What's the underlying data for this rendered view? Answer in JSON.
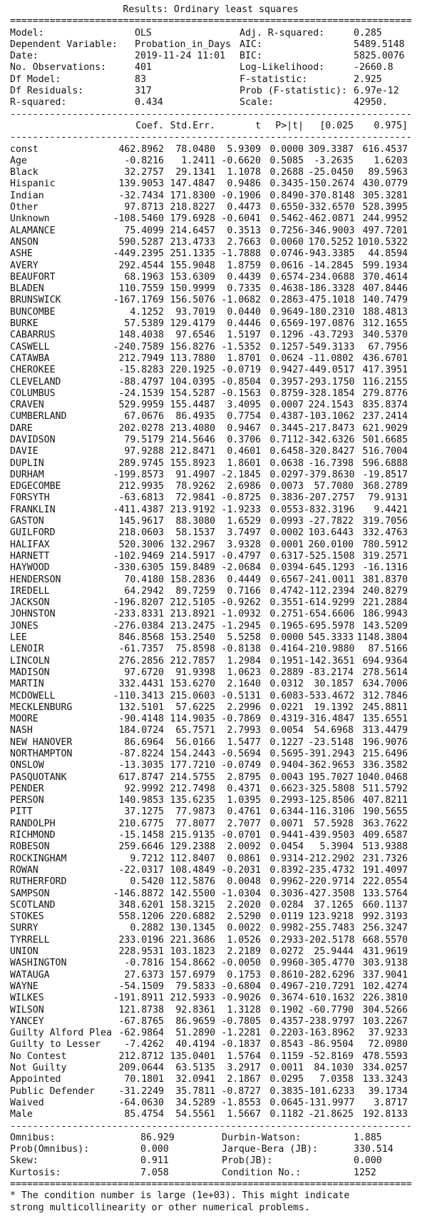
{
  "title": "Results: Ordinary least squares",
  "rule_double": "==================================================================================================",
  "rule_single": "--------------------------------------------------------------------------------------------------",
  "summary": [
    {
      "l1": "Model:",
      "v1": "OLS",
      "l2": "Adj. R-squared:",
      "v2": "0.285"
    },
    {
      "l1": "Dependent Variable:",
      "v1": "Probation_in_Days",
      "l2": "AIC:",
      "v2": "5489.5148"
    },
    {
      "l1": "Date:",
      "v1": "2019-11-24 11:01",
      "l2": "BIC:",
      "v2": "5825.0076"
    },
    {
      "l1": "No. Observations:",
      "v1": "401",
      "l2": "Log-Likelihood:",
      "v2": "-2660.8"
    },
    {
      "l1": "Df Model:",
      "v1": "83",
      "l2": "F-statistic:",
      "v2": "2.925"
    },
    {
      "l1": "Df Residuals:",
      "v1": "317",
      "l2": "Prob (F-statistic):",
      "v2": "6.97e-12"
    },
    {
      "l1": "R-squared:",
      "v1": "0.434",
      "l2": "Scale:",
      "v2": "42950."
    }
  ],
  "coef_headers": [
    "Coef.",
    "Std.Err.",
    "t",
    "P>|t|",
    "[0.025",
    "0.975]"
  ],
  "coef_rows": [
    [
      "const",
      "462.8962",
      "78.0480",
      "5.9309",
      "0.0000",
      "309.3387",
      "616.4537"
    ],
    [
      "Age",
      "-0.8216",
      "1.2411",
      "-0.6620",
      "0.5085",
      "-3.2635",
      "1.6203"
    ],
    [
      "Black",
      "32.2757",
      "29.1341",
      "1.1078",
      "0.2688",
      "-25.0450",
      "89.5963"
    ],
    [
      "Hispanic",
      "139.9053",
      "147.4847",
      "0.9486",
      "0.3435",
      "-150.2674",
      "430.0779"
    ],
    [
      "Indian",
      "-32.7434",
      "171.8300",
      "-0.1906",
      "0.8490",
      "-370.8148",
      "305.3281"
    ],
    [
      "Other",
      "97.8713",
      "218.8227",
      "0.4473",
      "0.6550",
      "-332.6570",
      "528.3995"
    ],
    [
      "Unknown",
      "-108.5460",
      "179.6928",
      "-0.6041",
      "0.5462",
      "-462.0871",
      "244.9952"
    ],
    [
      "ALAMANCE",
      "75.4099",
      "214.6457",
      "0.3513",
      "0.7256",
      "-346.9003",
      "497.7201"
    ],
    [
      "ANSON",
      "590.5287",
      "213.4733",
      "2.7663",
      "0.0060",
      "170.5252",
      "1010.5322"
    ],
    [
      "ASHE",
      "-449.2395",
      "251.1335",
      "-1.7888",
      "0.0746",
      "-943.3385",
      "44.8594"
    ],
    [
      "AVERY",
      "292.4544",
      "155.9048",
      "1.8759",
      "0.0616",
      "-14.2845",
      "599.1934"
    ],
    [
      "BEAUFORT",
      "68.1963",
      "153.6309",
      "0.4439",
      "0.6574",
      "-234.0688",
      "370.4614"
    ],
    [
      "BLADEN",
      "110.7559",
      "150.9999",
      "0.7335",
      "0.4638",
      "-186.3328",
      "407.8446"
    ],
    [
      "BRUNSWICK",
      "-167.1769",
      "156.5076",
      "-1.0682",
      "0.2863",
      "-475.1018",
      "140.7479"
    ],
    [
      "BUNCOMBE",
      "4.1252",
      "93.7019",
      "0.0440",
      "0.9649",
      "-180.2310",
      "188.4813"
    ],
    [
      "BURKE",
      "57.5389",
      "129.4179",
      "0.4446",
      "0.6569",
      "-197.0876",
      "312.1655"
    ],
    [
      "CABARRUS",
      "148.4038",
      "97.6546",
      "1.5197",
      "0.1296",
      "-43.7293",
      "340.5370"
    ],
    [
      "CASWELL",
      "-240.7589",
      "156.8276",
      "-1.5352",
      "0.1257",
      "-549.3133",
      "67.7956"
    ],
    [
      "CATAWBA",
      "212.7949",
      "113.7880",
      "1.8701",
      "0.0624",
      "-11.0802",
      "436.6701"
    ],
    [
      "CHEROKEE",
      "-15.8283",
      "220.1925",
      "-0.0719",
      "0.9427",
      "-449.0517",
      "417.3951"
    ],
    [
      "CLEVELAND",
      "-88.4797",
      "104.0395",
      "-0.8504",
      "0.3957",
      "-293.1750",
      "116.2155"
    ],
    [
      "COLUMBUS",
      "-24.1539",
      "154.5287",
      "-0.1563",
      "0.8759",
      "-328.1854",
      "279.8776"
    ],
    [
      "CRAVEN",
      "529.9959",
      "155.4487",
      "3.4095",
      "0.0007",
      "224.1543",
      "835.8374"
    ],
    [
      "CUMBERLAND",
      "67.0676",
      "86.4935",
      "0.7754",
      "0.4387",
      "-103.1062",
      "237.2414"
    ],
    [
      "DARE",
      "202.0278",
      "213.4080",
      "0.9467",
      "0.3445",
      "-217.8473",
      "621.9029"
    ],
    [
      "DAVIDSON",
      "79.5179",
      "214.5646",
      "0.3706",
      "0.7112",
      "-342.6326",
      "501.6685"
    ],
    [
      "DAVIE",
      "97.9288",
      "212.8471",
      "0.4601",
      "0.6458",
      "-320.8427",
      "516.7004"
    ],
    [
      "DUPLIN",
      "289.9745",
      "155.8923",
      "1.8601",
      "0.0638",
      "-16.7398",
      "596.6888"
    ],
    [
      "DURHAM",
      "-199.8573",
      "91.4907",
      "-2.1845",
      "0.0297",
      "-379.8630",
      "-19.8517"
    ],
    [
      "EDGECOMBE",
      "212.9935",
      "78.9262",
      "2.6986",
      "0.0073",
      "57.7080",
      "368.2789"
    ],
    [
      "FORSYTH",
      "-63.6813",
      "72.9841",
      "-0.8725",
      "0.3836",
      "-207.2757",
      "79.9131"
    ],
    [
      "FRANKLIN",
      "-411.4387",
      "213.9192",
      "-1.9233",
      "0.0553",
      "-832.3196",
      "9.4421"
    ],
    [
      "GASTON",
      "145.9617",
      "88.3080",
      "1.6529",
      "0.0993",
      "-27.7822",
      "319.7056"
    ],
    [
      "GUILFORD",
      "218.0603",
      "58.1537",
      "3.7497",
      "0.0002",
      "103.6443",
      "332.4763"
    ],
    [
      "HALIFAX",
      "520.3006",
      "132.2967",
      "3.9328",
      "0.0001",
      "260.0100",
      "780.5912"
    ],
    [
      "HARNETT",
      "-102.9469",
      "214.5917",
      "-0.4797",
      "0.6317",
      "-525.1508",
      "319.2571"
    ],
    [
      "HAYWOOD",
      "-330.6305",
      "159.8489",
      "-2.0684",
      "0.0394",
      "-645.1293",
      "-16.1316"
    ],
    [
      "HENDERSON",
      "70.4180",
      "158.2836",
      "0.4449",
      "0.6567",
      "-241.0011",
      "381.8370"
    ],
    [
      "IREDELL",
      "64.2942",
      "89.7259",
      "0.7166",
      "0.4742",
      "-112.2394",
      "240.8279"
    ],
    [
      "JACKSON",
      "-196.8207",
      "212.5105",
      "-0.9262",
      "0.3551",
      "-614.9299",
      "221.2884"
    ],
    [
      "JOHNSTON",
      "-233.8331",
      "213.8921",
      "-1.0932",
      "0.2751",
      "-654.6606",
      "186.9943"
    ],
    [
      "JONES",
      "-276.0384",
      "213.2475",
      "-1.2945",
      "0.1965",
      "-695.5978",
      "143.5209"
    ],
    [
      "LEE",
      "846.8568",
      "153.2540",
      "5.5258",
      "0.0000",
      "545.3333",
      "1148.3804"
    ],
    [
      "LENOIR",
      "-61.7357",
      "75.8598",
      "-0.8138",
      "0.4164",
      "-210.9880",
      "87.5166"
    ],
    [
      "LINCOLN",
      "276.2856",
      "212.7857",
      "1.2984",
      "0.1951",
      "-142.3651",
      "694.9364"
    ],
    [
      "MADISON",
      "97.6720",
      "91.9398",
      "1.0623",
      "0.2889",
      "-83.2174",
      "278.5614"
    ],
    [
      "MARTIN",
      "332.4431",
      "153.6270",
      "2.1640",
      "0.0312",
      "30.1857",
      "634.7006"
    ],
    [
      "MCDOWELL",
      "-110.3413",
      "215.0603",
      "-0.5131",
      "0.6083",
      "-533.4672",
      "312.7846"
    ],
    [
      "MECKLENBURG",
      "132.5101",
      "57.6225",
      "2.2996",
      "0.0221",
      "19.1392",
      "245.8811"
    ],
    [
      "MOORE",
      "-90.4148",
      "114.9035",
      "-0.7869",
      "0.4319",
      "-316.4847",
      "135.6551"
    ],
    [
      "NASH",
      "184.0724",
      "65.7571",
      "2.7993",
      "0.0054",
      "54.6968",
      "313.4479"
    ],
    [
      "NEW HANOVER",
      "86.6964",
      "56.0166",
      "1.5477",
      "0.1227",
      "-23.5148",
      "196.9076"
    ],
    [
      "NORTHAMPTON",
      "-87.8224",
      "154.2443",
      "-0.5694",
      "0.5695",
      "-391.2943",
      "215.6496"
    ],
    [
      "ONSLOW",
      "-13.3035",
      "177.7210",
      "-0.0749",
      "0.9404",
      "-362.9653",
      "336.3582"
    ],
    [
      "PASQUOTANK",
      "617.8747",
      "214.5755",
      "2.8795",
      "0.0043",
      "195.7027",
      "1040.0468"
    ],
    [
      "PENDER",
      "92.9992",
      "212.7498",
      "0.4371",
      "0.6623",
      "-325.5808",
      "511.5792"
    ],
    [
      "PERSON",
      "140.9853",
      "135.6235",
      "1.0395",
      "0.2993",
      "-125.8506",
      "407.8211"
    ],
    [
      "PITT",
      "37.1275",
      "77.9873",
      "0.4761",
      "0.6344",
      "-116.3106",
      "190.5655"
    ],
    [
      "RANDOLPH",
      "210.6775",
      "77.8077",
      "2.7077",
      "0.0071",
      "57.5928",
      "363.7622"
    ],
    [
      "RICHMOND",
      "-15.1458",
      "215.9135",
      "-0.0701",
      "0.9441",
      "-439.9503",
      "409.6587"
    ],
    [
      "ROBESON",
      "259.6646",
      "129.2388",
      "2.0092",
      "0.0454",
      "5.3904",
      "513.9388"
    ],
    [
      "ROCKINGHAM",
      "9.7212",
      "112.8407",
      "0.0861",
      "0.9314",
      "-212.2902",
      "231.7326"
    ],
    [
      "ROWAN",
      "-22.0317",
      "108.4849",
      "-0.2031",
      "0.8392",
      "-235.4732",
      "191.4097"
    ],
    [
      "RUTHERFORD",
      "0.5420",
      "112.5876",
      "0.0048",
      "0.9962",
      "-220.9714",
      "222.0554"
    ],
    [
      "SAMPSON",
      "-146.8872",
      "142.5500",
      "-1.0304",
      "0.3036",
      "-427.3508",
      "133.5764"
    ],
    [
      "SCOTLAND",
      "348.6201",
      "158.3215",
      "2.2020",
      "0.0284",
      "37.1265",
      "660.1137"
    ],
    [
      "STOKES",
      "558.1206",
      "220.6882",
      "2.5290",
      "0.0119",
      "123.9218",
      "992.3193"
    ],
    [
      "SURRY",
      "0.2882",
      "130.1345",
      "0.0022",
      "0.9982",
      "-255.7483",
      "256.3247"
    ],
    [
      "TYRRELL",
      "233.0196",
      "221.3686",
      "1.0526",
      "0.2933",
      "-202.5178",
      "668.5570"
    ],
    [
      "UNION",
      "228.9531",
      "103.1823",
      "2.2189",
      "0.0272",
      "25.9444",
      "431.9619"
    ],
    [
      "WASHINGTON",
      "-0.7816",
      "154.8662",
      "-0.0050",
      "0.9960",
      "-305.4770",
      "303.9138"
    ],
    [
      "WATAUGA",
      "27.6373",
      "157.6979",
      "0.1753",
      "0.8610",
      "-282.6296",
      "337.9041"
    ],
    [
      "WAYNE",
      "-54.1509",
      "79.5833",
      "-0.6804",
      "0.4967",
      "-210.7291",
      "102.4274"
    ],
    [
      "WILKES",
      "-191.8911",
      "212.5933",
      "-0.9026",
      "0.3674",
      "-610.1632",
      "226.3810"
    ],
    [
      "WILSON",
      "121.8738",
      "92.8361",
      "1.3128",
      "0.1902",
      "-60.7790",
      "304.5266"
    ],
    [
      "YANCEY",
      "-67.8765",
      "86.9659",
      "-0.7805",
      "0.4357",
      "-238.9797",
      "103.2267"
    ],
    [
      "Guilty Alford Plea",
      "-62.9864",
      "51.2890",
      "-1.2281",
      "0.2203",
      "-163.8962",
      "37.9233"
    ],
    [
      "Guilty to Lesser",
      "-7.4262",
      "40.4194",
      "-0.1837",
      "0.8543",
      "-86.9504",
      "72.0980"
    ],
    [
      "No Contest",
      "212.8712",
      "135.0401",
      "1.5764",
      "0.1159",
      "-52.8169",
      "478.5593"
    ],
    [
      "Not Guilty",
      "209.0644",
      "63.5135",
      "3.2917",
      "0.0011",
      "84.1030",
      "334.0257"
    ],
    [
      "Appointed",
      "70.1801",
      "32.0941",
      "2.1867",
      "0.0295",
      "7.0358",
      "133.3243"
    ],
    [
      "Public Defender",
      "-31.2249",
      "35.7811",
      "-0.8727",
      "0.3835",
      "-101.6233",
      "39.1734"
    ],
    [
      "Waived",
      "-64.0630",
      "34.5289",
      "-1.8553",
      "0.0645",
      "-131.9977",
      "3.8717"
    ],
    [
      "Male",
      "85.4754",
      "54.5561",
      "1.5667",
      "0.1182",
      "-21.8625",
      "192.8133"
    ]
  ],
  "diagnostics": [
    {
      "l1": "Omnibus:",
      "v1": "86.929",
      "l2": "Durbin-Watson:",
      "v2": "1.885"
    },
    {
      "l1": "Prob(Omnibus):",
      "v1": "0.000",
      "l2": "Jarque-Bera (JB):",
      "v2": "330.514"
    },
    {
      "l1": "Skew:",
      "v1": "0.911",
      "l2": "Prob(JB):",
      "v2": "0.000"
    },
    {
      "l1": "Kurtosis:",
      "v1": "7.058",
      "l2": "Condition No.:",
      "v2": "1252"
    }
  ],
  "notes": [
    "* The condition number is large (1e+03). This might indicate",
    "strong multicollinearity or other numerical problems."
  ]
}
